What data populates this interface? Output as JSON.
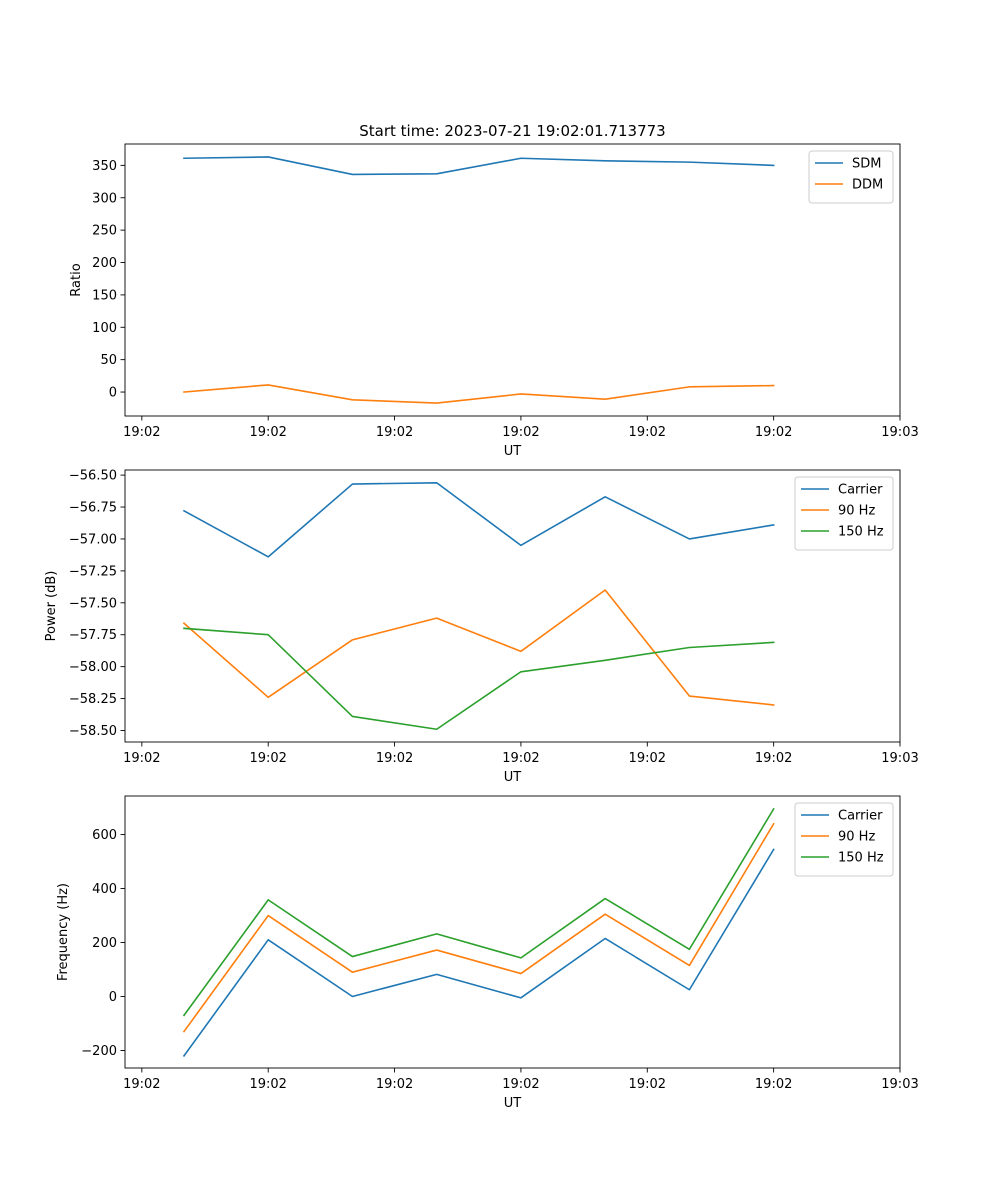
{
  "figure_title": "Start time: 2023-07-21 19:02:01.713773",
  "colors": {
    "blue": "#1f77b4",
    "orange": "#ff7f0e",
    "green": "#2ca02c"
  },
  "chart_data": [
    {
      "type": "line",
      "title": "Start time: 2023-07-21 19:02:01.713773",
      "xlabel": "UT",
      "ylabel": "Ratio",
      "x": [
        0.5,
        1.5,
        2.5,
        3.5,
        4.5,
        5.5,
        6.5,
        7.5
      ],
      "xlim": [
        -0.2,
        9.0
      ],
      "xtick_values": [
        0,
        1.5,
        3,
        4.5,
        6,
        7.5,
        9
      ],
      "xtick_labels": [
        "19:02",
        "19:02",
        "19:02",
        "19:02",
        "19:02",
        "19:02",
        "19:03"
      ],
      "ylim": [
        -37,
        383
      ],
      "ytick_values": [
        0,
        50,
        100,
        150,
        200,
        250,
        300,
        350
      ],
      "ytick_labels": [
        "0",
        "50",
        "100",
        "150",
        "200",
        "250",
        "300",
        "350"
      ],
      "legend_position": "top-right",
      "series": [
        {
          "name": "SDM",
          "color": "#1f77b4",
          "values": [
            361,
            363,
            336,
            337,
            361,
            357,
            355,
            350
          ]
        },
        {
          "name": "DDM",
          "color": "#ff7f0e",
          "values": [
            0,
            11,
            -12,
            -17,
            -3,
            -11,
            8,
            10
          ]
        }
      ]
    },
    {
      "type": "line",
      "title": "",
      "xlabel": "UT",
      "ylabel": "Power (dB)",
      "x": [
        0.5,
        1.5,
        2.5,
        3.5,
        4.5,
        5.5,
        6.5,
        7.5
      ],
      "xlim": [
        -0.2,
        9.0
      ],
      "xtick_values": [
        0,
        1.5,
        3,
        4.5,
        6,
        7.5,
        9
      ],
      "xtick_labels": [
        "19:02",
        "19:02",
        "19:02",
        "19:02",
        "19:02",
        "19:02",
        "19:03"
      ],
      "ylim": [
        -58.59,
        -56.46
      ],
      "ytick_values": [
        -56.5,
        -56.75,
        -57.0,
        -57.25,
        -57.5,
        -57.75,
        -58.0,
        -58.25,
        -58.5
      ],
      "ytick_labels": [
        "−56.50",
        "−56.75",
        "−57.00",
        "−57.25",
        "−57.50",
        "−57.75",
        "−58.00",
        "−58.25",
        "−58.50"
      ],
      "legend_position": "top-right",
      "series": [
        {
          "name": "Carrier",
          "color": "#1f77b4",
          "values": [
            -56.78,
            -57.14,
            -56.57,
            -56.56,
            -57.05,
            -56.67,
            -57.0,
            -56.89
          ]
        },
        {
          "name": "90 Hz",
          "color": "#ff7f0e",
          "values": [
            -57.66,
            -58.24,
            -57.79,
            -57.62,
            -57.88,
            -57.4,
            -58.23,
            -58.3
          ]
        },
        {
          "name": "150 Hz",
          "color": "#2ca02c",
          "values": [
            -57.7,
            -57.75,
            -58.39,
            -58.49,
            -58.04,
            -57.95,
            -57.85,
            -57.81
          ]
        }
      ]
    },
    {
      "type": "line",
      "title": "",
      "xlabel": "UT",
      "ylabel": "Frequency (Hz)",
      "x": [
        0.5,
        1.5,
        2.5,
        3.5,
        4.5,
        5.5,
        6.5,
        7.5
      ],
      "xlim": [
        -0.2,
        9.0
      ],
      "xtick_values": [
        0,
        1.5,
        3,
        4.5,
        6,
        7.5,
        9
      ],
      "xtick_labels": [
        "19:02",
        "19:02",
        "19:02",
        "19:02",
        "19:02",
        "19:02",
        "19:03"
      ],
      "ylim": [
        -265,
        743
      ],
      "ytick_values": [
        -200,
        0,
        200,
        400,
        600
      ],
      "ytick_labels": [
        "−200",
        "0",
        "200",
        "400",
        "600"
      ],
      "legend_position": "top-right",
      "series": [
        {
          "name": "Carrier",
          "color": "#1f77b4",
          "values": [
            -220,
            210,
            0,
            82,
            -5,
            215,
            25,
            545
          ]
        },
        {
          "name": "90 Hz",
          "color": "#ff7f0e",
          "values": [
            -130,
            300,
            90,
            172,
            85,
            305,
            115,
            640
          ]
        },
        {
          "name": "150 Hz",
          "color": "#2ca02c",
          "values": [
            -70,
            358,
            148,
            232,
            143,
            363,
            175,
            695
          ]
        }
      ]
    }
  ]
}
